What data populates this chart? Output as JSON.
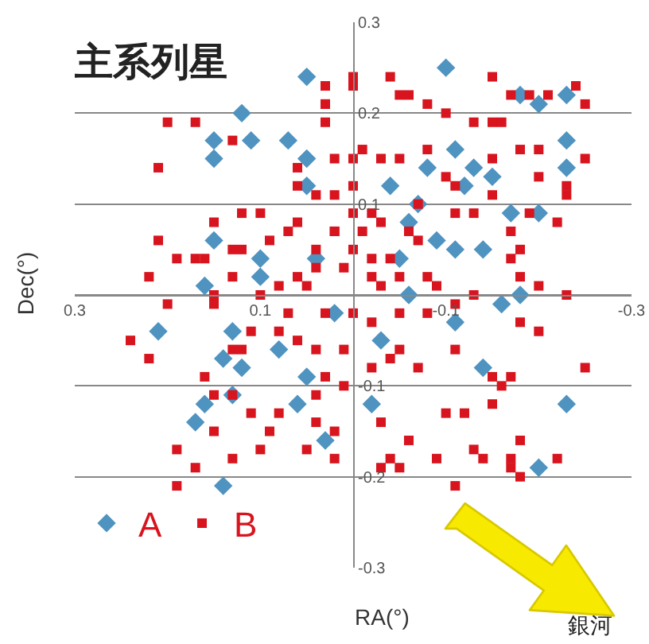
{
  "chart_data": {
    "type": "scatter",
    "title": "主系列星",
    "xlabel": "RA(°)",
    "ylabel": "Dec(°)",
    "annotations": [
      "銀河"
    ],
    "xlim": [
      0.3,
      -0.3
    ],
    "ylim": [
      -0.3,
      0.3
    ],
    "xticks": [
      0.3,
      0.1,
      -0.1,
      -0.3
    ],
    "yticks": [
      -0.3,
      -0.2,
      -0.1,
      {
        "value": 0,
        "label": null
      },
      0.1,
      0.2,
      0.3
    ],
    "grid": "y",
    "legend": "bottom left",
    "series": [
      {
        "name": "A",
        "color": "#4f93c0",
        "marker": "diamond",
        "x": [
          0.05,
          0.12,
          0.15,
          0.15,
          0.11,
          0.07,
          0.05,
          0.05,
          0.1,
          0.15,
          0.1,
          0.16,
          0.04,
          -0.1,
          -0.18,
          -0.2,
          -0.23,
          -0.23,
          -0.23,
          -0.08,
          -0.11,
          -0.13,
          -0.12,
          -0.15,
          -0.07,
          -0.04,
          -0.06,
          -0.09,
          -0.11,
          -0.14,
          -0.17,
          -0.2,
          -0.05,
          -0.06,
          -0.16,
          -0.18,
          0.21,
          0.13,
          0.14,
          0.12,
          0.16,
          0.17,
          0.13,
          0.14,
          0.06,
          0.03,
          0.08,
          0.05,
          -0.02,
          -0.23,
          -0.2,
          -0.14,
          -0.11,
          -0.03,
          0.02
        ],
        "values": [
          0.24,
          0.2,
          0.17,
          0.15,
          0.17,
          0.17,
          0.12,
          0.15,
          0.04,
          0.06,
          0.02,
          0.01,
          0.04,
          0.25,
          0.22,
          0.21,
          0.22,
          0.17,
          0.14,
          0.14,
          0.16,
          0.14,
          0.12,
          0.13,
          0.1,
          0.12,
          0.08,
          0.06,
          0.05,
          0.05,
          0.09,
          0.09,
          0.04,
          0.0,
          -0.01,
          0.0,
          -0.04,
          -0.04,
          -0.07,
          -0.08,
          -0.12,
          -0.14,
          -0.11,
          -0.21,
          -0.12,
          -0.16,
          -0.06,
          -0.09,
          -0.12,
          -0.12,
          -0.19,
          -0.08,
          -0.03,
          -0.05,
          -0.02
        ]
      },
      {
        "name": "B",
        "color": "#d8141e",
        "marker": "square",
        "x": [
          0.2,
          0.17,
          0.13,
          0.21,
          0.03,
          0.03,
          0.03,
          0.06,
          0.02,
          0.04,
          0.15,
          0.12,
          0.1,
          0.21,
          0.19,
          0.17,
          0.16,
          0.13,
          0.12,
          0.07,
          0.06,
          0.02,
          0.04,
          0.22,
          0.15,
          0.13,
          0.1,
          0.08,
          0.06,
          0.04,
          0.2,
          -0.04,
          0.0,
          0.0,
          -0.05,
          -0.06,
          -0.08,
          -0.15,
          -0.17,
          -0.19,
          -0.21,
          -0.24,
          -0.25,
          -0.1,
          -0.13,
          -0.15,
          -0.16,
          0.03,
          0.0,
          -0.01,
          -0.03,
          -0.05,
          -0.08,
          -0.1,
          -0.11,
          -0.15,
          -0.18,
          -0.2,
          -0.2,
          -0.25,
          -0.23,
          -0.23,
          0.0,
          0.02,
          0.0,
          -0.02,
          -0.03,
          0.02,
          -0.01,
          -0.06,
          -0.07,
          -0.11,
          -0.13,
          -0.15,
          -0.17,
          -0.19,
          -0.22,
          -0.18,
          -0.17,
          -0.18,
          -0.2,
          -0.23,
          -0.08,
          -0.05,
          -0.03,
          -0.09,
          -0.11,
          -0.13,
          0.0,
          0.01,
          -0.02,
          -0.02,
          0.24,
          0.22,
          0.16,
          0.15,
          0.13,
          0.15,
          0.11,
          0.08,
          0.09,
          0.19,
          0.17,
          0.19,
          0.13,
          0.1,
          0.05,
          0.13,
          0.12,
          0.11,
          0.08,
          0.06,
          0.04,
          0.01,
          0.04,
          0.04,
          0.02,
          0.02,
          0.15,
          0.03,
          0.01,
          -0.02,
          -0.04,
          -0.05,
          -0.07,
          -0.11,
          -0.18,
          -0.2,
          -0.25,
          -0.15,
          -0.16,
          -0.15,
          -0.17,
          -0.1,
          -0.12,
          -0.03,
          -0.06,
          -0.09,
          -0.13,
          -0.14,
          -0.17,
          -0.18,
          -0.22,
          -0.17,
          -0.18,
          -0.04,
          -0.03,
          -0.05,
          -0.11,
          0.03,
          0.0,
          -0.05,
          -0.08,
          0.05,
          0.07,
          -0.04,
          0.09,
          -0.02,
          0.06,
          -0.07
        ],
        "values": [
          0.19,
          0.19,
          0.17,
          0.14,
          0.23,
          0.21,
          0.19,
          0.14,
          0.15,
          0.11,
          0.08,
          0.09,
          0.09,
          0.06,
          0.04,
          0.04,
          0.04,
          0.05,
          0.05,
          0.07,
          0.08,
          0.07,
          0.05,
          0.02,
          0.0,
          0.02,
          0.0,
          0.01,
          0.02,
          0.03,
          -0.01,
          0.24,
          0.24,
          0.23,
          0.22,
          0.22,
          0.21,
          0.24,
          0.22,
          0.22,
          0.22,
          0.23,
          0.21,
          0.2,
          0.19,
          0.19,
          0.19,
          0.21,
          0.15,
          0.16,
          0.15,
          0.15,
          0.16,
          0.13,
          0.12,
          0.15,
          0.16,
          0.16,
          0.13,
          0.15,
          0.12,
          0.11,
          0.12,
          0.11,
          0.09,
          0.09,
          0.08,
          0.07,
          0.07,
          0.07,
          0.06,
          0.09,
          0.09,
          0.11,
          0.07,
          0.09,
          0.08,
          0.05,
          0.04,
          0.02,
          0.01,
          0.0,
          0.02,
          0.02,
          0.01,
          0.01,
          -0.01,
          0.0,
          0.05,
          0.03,
          0.04,
          0.02,
          -0.05,
          -0.07,
          -0.09,
          -0.11,
          -0.11,
          -0.15,
          -0.13,
          -0.13,
          -0.15,
          -0.17,
          -0.19,
          -0.21,
          -0.18,
          -0.17,
          -0.17,
          -0.06,
          -0.06,
          -0.04,
          -0.04,
          -0.05,
          -0.06,
          -0.06,
          -0.11,
          -0.14,
          -0.15,
          -0.18,
          -0.01,
          -0.09,
          -0.1,
          -0.08,
          -0.07,
          -0.06,
          -0.08,
          -0.06,
          -0.03,
          -0.04,
          -0.08,
          -0.09,
          -0.1,
          -0.12,
          -0.09,
          -0.13,
          -0.13,
          -0.14,
          -0.16,
          -0.18,
          -0.17,
          -0.18,
          -0.18,
          -0.16,
          -0.18,
          -0.19,
          -0.2,
          -0.18,
          -0.19,
          -0.19,
          -0.21,
          -0.02,
          -0.02,
          -0.02,
          -0.02,
          0.01,
          -0.02,
          0.04,
          0.06,
          -0.03,
          0.12,
          0.1
        ]
      }
    ]
  }
}
